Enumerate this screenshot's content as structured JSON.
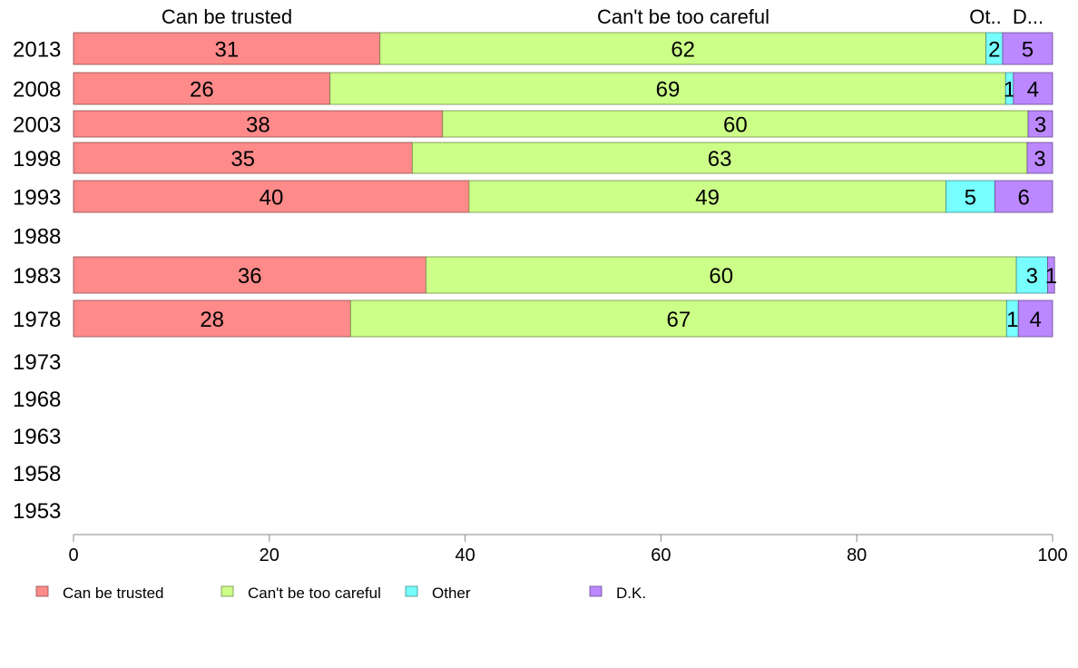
{
  "chart_data": {
    "type": "bar",
    "orientation": "horizontal",
    "stacked": true,
    "categories": [
      "2013",
      "2008",
      "2003",
      "1998",
      "1993",
      "1988",
      "1983",
      "1978",
      "1973",
      "1968",
      "1963",
      "1958",
      "1953"
    ],
    "series": [
      {
        "name": "Can be trusted",
        "color": "#ff8a8a",
        "values": [
          31.3,
          26.2,
          37.7,
          34.6,
          40.4,
          null,
          36.0,
          28.3,
          null,
          null,
          null,
          null,
          null
        ],
        "labels": [
          "31",
          "26",
          "38",
          "35",
          "40",
          "",
          "36",
          "28",
          "",
          "",
          "",
          "",
          ""
        ]
      },
      {
        "name": "Can't be too careful",
        "color": "#ccff88",
        "values": [
          61.9,
          69.0,
          59.8,
          62.8,
          48.7,
          null,
          60.3,
          67.0,
          null,
          null,
          null,
          null,
          null
        ],
        "labels": [
          "62",
          "69",
          "60",
          "63",
          "49",
          "",
          "60",
          "67",
          "",
          "",
          "",
          "",
          ""
        ]
      },
      {
        "name": "Other",
        "color": "#77ffff",
        "values": [
          1.7,
          0.8,
          0.0,
          0.0,
          5.0,
          null,
          3.2,
          1.2,
          null,
          null,
          null,
          null,
          null
        ],
        "labels": [
          "2",
          "1",
          "",
          "",
          "5",
          "",
          "3",
          "1",
          "",
          "",
          "",
          "",
          ""
        ]
      },
      {
        "name": "D.K.",
        "color": "#bb88ff",
        "values": [
          5.1,
          4.0,
          2.5,
          2.6,
          5.9,
          null,
          0.7,
          3.5,
          null,
          null,
          null,
          null,
          null
        ],
        "labels": [
          "5",
          "4",
          "3",
          "3",
          "6",
          "",
          "1",
          "4",
          "",
          "",
          "",
          "",
          ""
        ]
      }
    ],
    "xlim": [
      0,
      100
    ],
    "xticks": [
      "0",
      "20",
      "40",
      "60",
      "80",
      "100"
    ],
    "column_headers": [
      "Can be trusted",
      "Can't be too careful",
      "Ot..",
      "D..."
    ],
    "legend": {
      "position": "bottom-left",
      "items": [
        "Can be trusted",
        "Can't be too careful",
        "Other",
        "D.K."
      ]
    }
  }
}
